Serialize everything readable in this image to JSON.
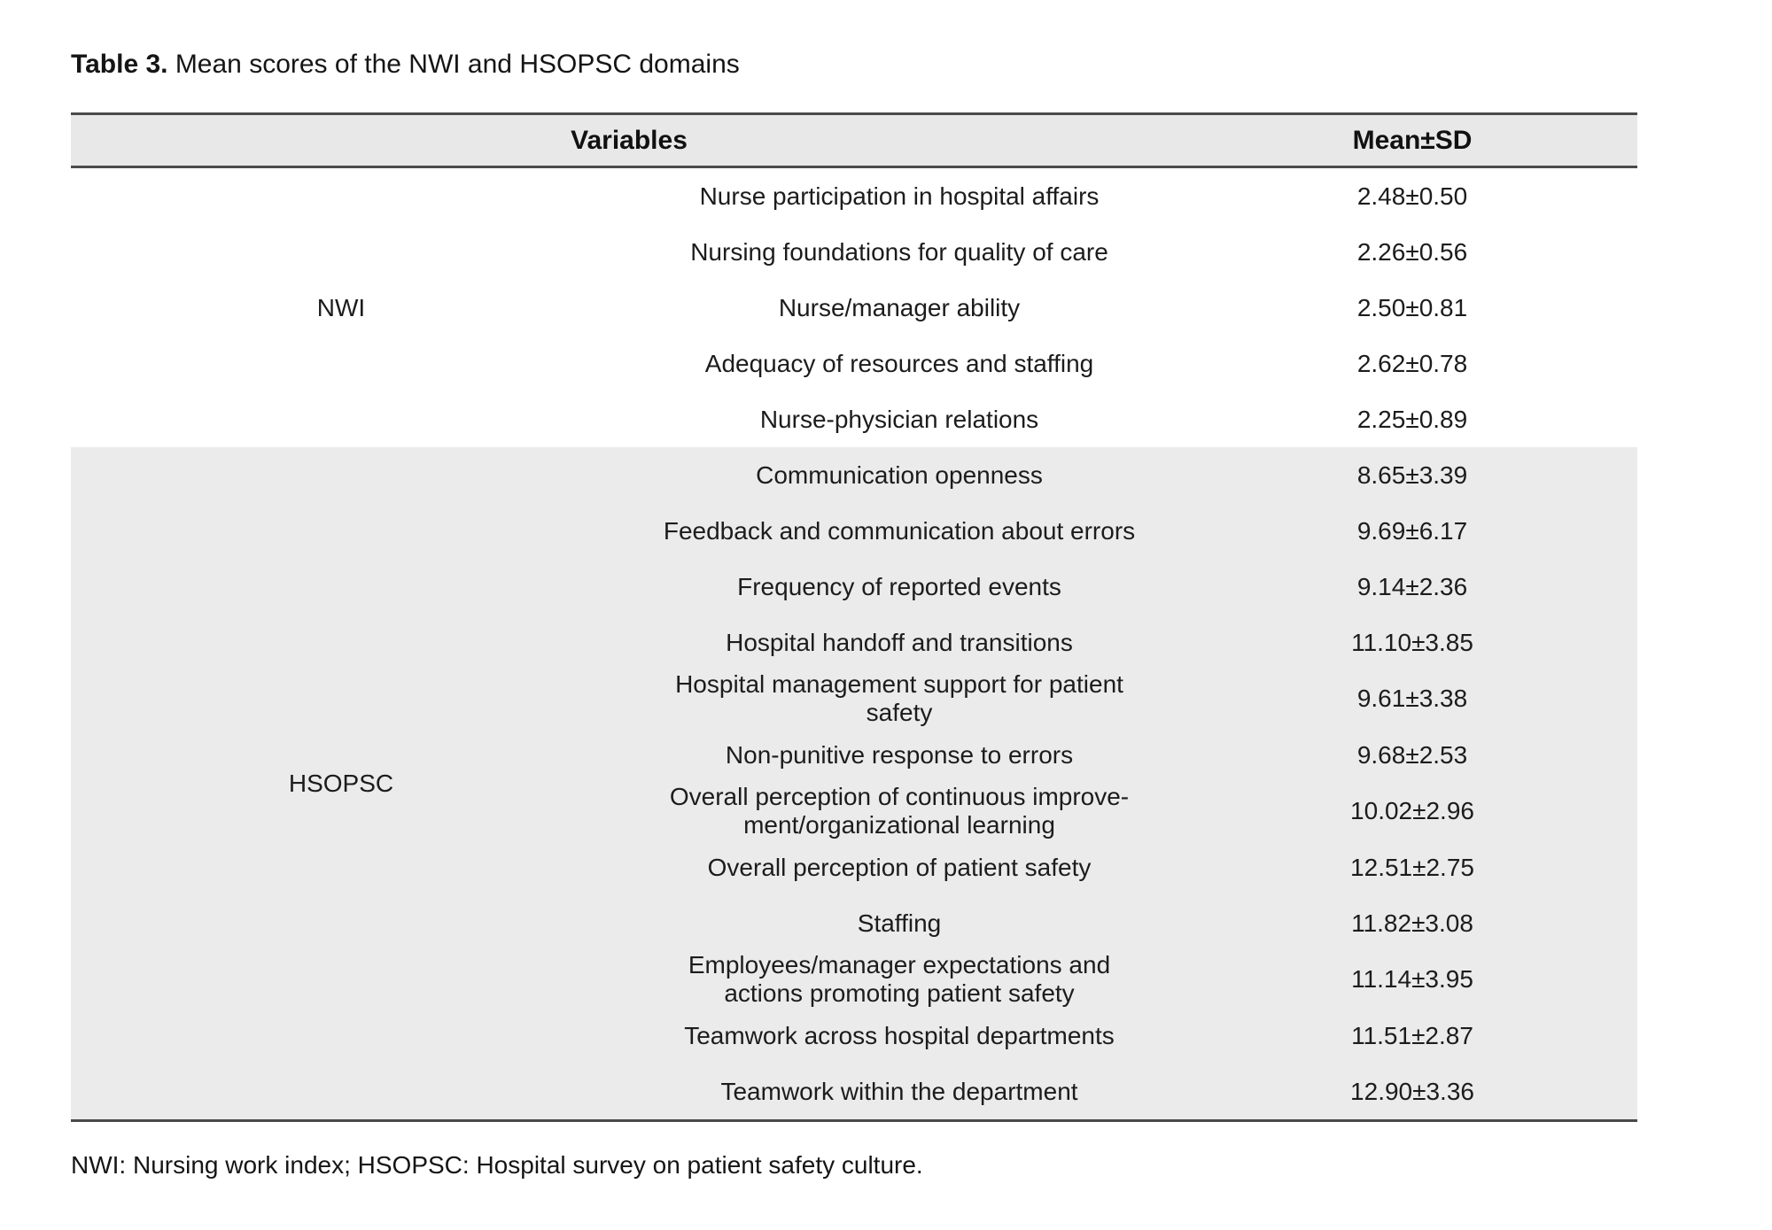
{
  "title": {
    "label": "Table 3.",
    "text": " Mean scores of the NWI and HSOPSC domains"
  },
  "table": {
    "headers": {
      "variables": "Variables",
      "mean_sd": "Mean±SD"
    },
    "groups": [
      {
        "name": "NWI",
        "rows": [
          {
            "variable": "Nurse participation in hospital affairs",
            "mean_sd": "2.48±0.50"
          },
          {
            "variable": "Nursing foundations for quality of care",
            "mean_sd": "2.26±0.56"
          },
          {
            "variable": "Nurse/manager ability",
            "mean_sd": "2.50±0.81"
          },
          {
            "variable": "Adequacy of resources and staffing",
            "mean_sd": "2.62±0.78"
          },
          {
            "variable": "Nurse-physician relations",
            "mean_sd": "2.25±0.89"
          }
        ]
      },
      {
        "name": "HSOPSC",
        "rows": [
          {
            "variable": "Communication openness",
            "mean_sd": "8.65±3.39"
          },
          {
            "variable": "Feedback and communication about errors",
            "mean_sd": "9.69±6.17"
          },
          {
            "variable": "Frequency of reported events",
            "mean_sd": "9.14±2.36"
          },
          {
            "variable": "Hospital handoff and transitions",
            "mean_sd": "11.10±3.85"
          },
          {
            "variable": "Hospital management support for patient\nsafety",
            "mean_sd": "9.61±3.38"
          },
          {
            "variable": "Non-punitive response to errors",
            "mean_sd": "9.68±2.53"
          },
          {
            "variable": "Overall perception of continuous improve-\nment/organizational learning",
            "mean_sd": "10.02±2.96"
          },
          {
            "variable": "Overall perception of patient safety",
            "mean_sd": "12.51±2.75"
          },
          {
            "variable": "Staffing",
            "mean_sd": "11.82±3.08"
          },
          {
            "variable": "Employees/manager expectations and\nactions promoting patient safety",
            "mean_sd": "11.14±3.95"
          },
          {
            "variable": "Teamwork across hospital departments",
            "mean_sd": "11.51±2.87"
          },
          {
            "variable": "Teamwork within the department",
            "mean_sd": "12.90±3.36"
          }
        ]
      }
    ]
  },
  "footnote": "NWI: Nursing work index; HSOPSC: Hospital survey on patient safety culture."
}
